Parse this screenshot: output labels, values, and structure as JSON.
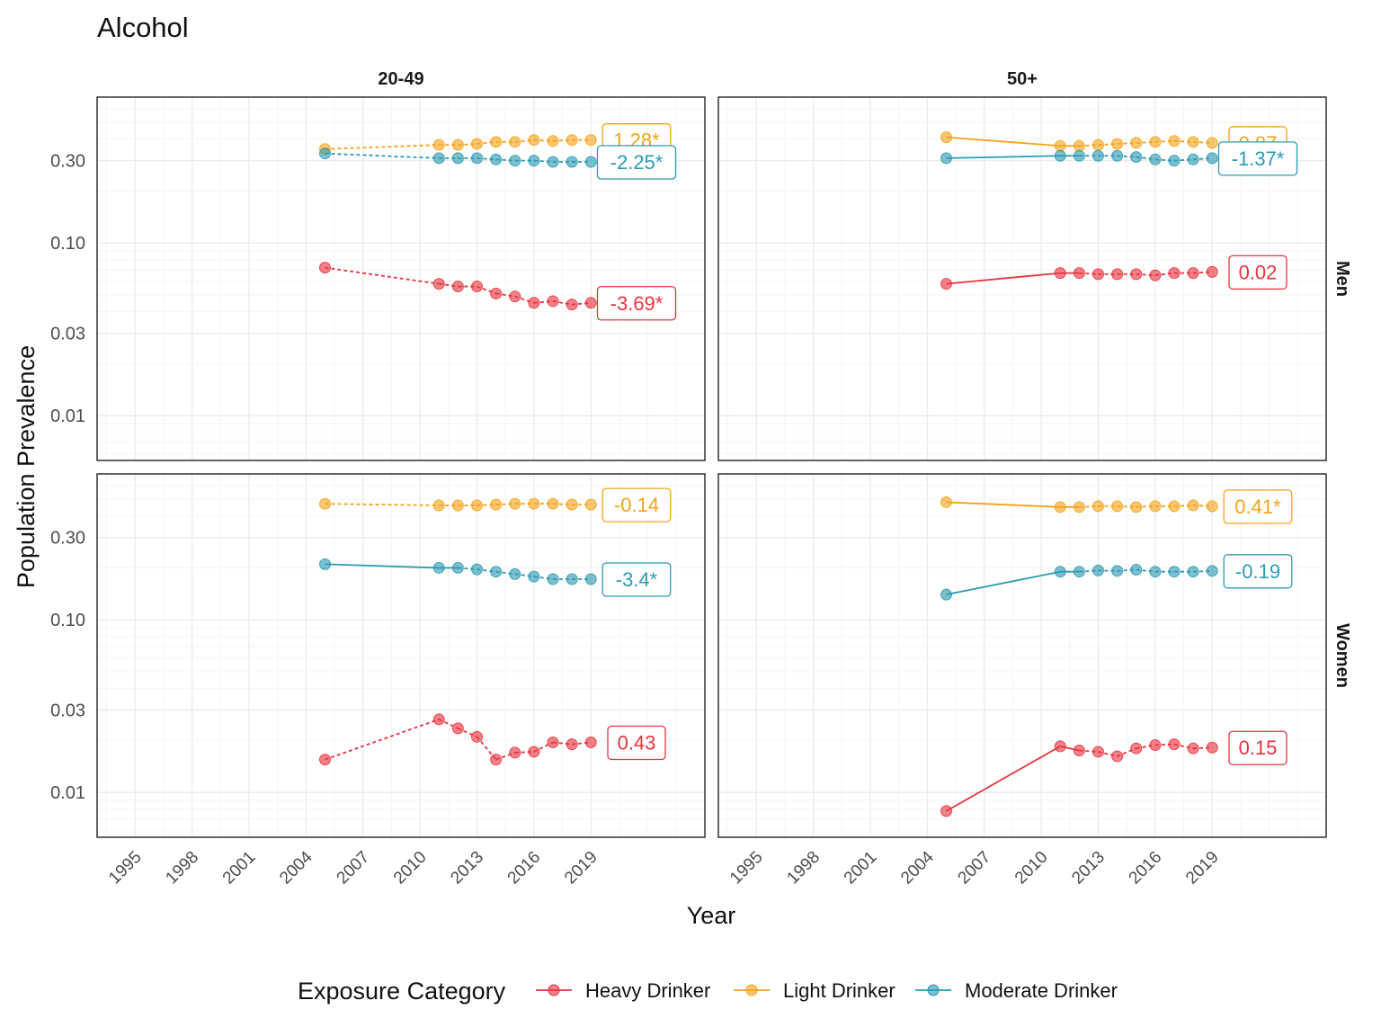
{
  "chart_data": {
    "type": "line",
    "title": "Alcohol",
    "xlabel": "Year",
    "ylabel": "Population Prevalence",
    "y_scale": "log10",
    "ylim": [
      0.0055,
      0.7
    ],
    "xlim": [
      1993,
      2025
    ],
    "x_ticks": [
      1995,
      1998,
      2001,
      2004,
      2007,
      2010,
      2013,
      2016,
      2019
    ],
    "y_ticks": [
      0.01,
      0.03,
      0.1,
      0.3
    ],
    "y_tick_labels": [
      "0.01",
      "0.03",
      "0.10",
      "0.30"
    ],
    "col_facets": [
      "20-49",
      "50+"
    ],
    "row_facets": [
      "Men",
      "Women"
    ],
    "grid": true,
    "legend": {
      "title": "Exposure Category",
      "position": "bottom",
      "entries": [
        "Heavy Drinker",
        "Light Drinker",
        "Moderate Drinker"
      ]
    },
    "colors": {
      "Heavy Drinker": "#E8343F",
      "Light Drinker": "#F5A31A",
      "Moderate Drinker": "#2C9AB3"
    },
    "x": [
      2005,
      2011,
      2012,
      2013,
      2014,
      2015,
      2016,
      2017,
      2018,
      2019
    ],
    "panels": [
      {
        "col": "20-49",
        "row": "Men",
        "series": [
          {
            "name": "Heavy Drinker",
            "x": [
              2005,
              2011,
              2012,
              2013,
              2014,
              2015,
              2016,
              2017,
              2018,
              2019
            ],
            "values": [
              0.072,
              0.058,
              0.056,
              0.056,
              0.051,
              0.049,
              0.045,
              0.046,
              0.044,
              0.045
            ],
            "solid_from": null,
            "annotation": "-3.69*"
          },
          {
            "name": "Light Drinker",
            "x": [
              2005,
              2011,
              2012,
              2013,
              2014,
              2015,
              2016,
              2017,
              2018,
              2019
            ],
            "values": [
              0.35,
              0.37,
              0.37,
              0.375,
              0.385,
              0.385,
              0.395,
              0.39,
              0.395,
              0.395
            ],
            "solid_from": null,
            "annotation": "1.28*"
          },
          {
            "name": "Moderate Drinker",
            "x": [
              2005,
              2011,
              2012,
              2013,
              2014,
              2015,
              2016,
              2017,
              2018,
              2019
            ],
            "values": [
              0.33,
              0.31,
              0.31,
              0.31,
              0.305,
              0.3,
              0.3,
              0.295,
              0.295,
              0.295
            ],
            "solid_from": null,
            "annotation": "-2.25*"
          }
        ]
      },
      {
        "col": "50+",
        "row": "Men",
        "series": [
          {
            "name": "Heavy Drinker",
            "x": [
              2005,
              2011,
              2012,
              2013,
              2014,
              2015,
              2016,
              2017,
              2018,
              2019
            ],
            "values": [
              0.058,
              0.067,
              0.067,
              0.066,
              0.066,
              0.066,
              0.065,
              0.067,
              0.067,
              0.068
            ],
            "solid_from": 2012,
            "annotation": "0.02"
          },
          {
            "name": "Light Drinker",
            "x": [
              2005,
              2011,
              2012,
              2013,
              2014,
              2015,
              2016,
              2017,
              2018,
              2019
            ],
            "values": [
              0.41,
              0.365,
              0.365,
              0.37,
              0.375,
              0.38,
              0.385,
              0.39,
              0.385,
              0.38
            ],
            "solid_from": 2012,
            "annotation": "0.87"
          },
          {
            "name": "Moderate Drinker",
            "x": [
              2005,
              2011,
              2012,
              2013,
              2014,
              2015,
              2016,
              2017,
              2018,
              2019
            ],
            "values": [
              0.31,
              0.32,
              0.32,
              0.32,
              0.32,
              0.315,
              0.305,
              0.3,
              0.305,
              0.31
            ],
            "solid_from": 2012,
            "annotation": "-1.37*"
          }
        ]
      },
      {
        "col": "20-49",
        "row": "Women",
        "series": [
          {
            "name": "Heavy Drinker",
            "x": [
              2005,
              2011,
              2012,
              2013,
              2014,
              2015,
              2016,
              2017,
              2018,
              2019
            ],
            "values": [
              0.0155,
              0.0265,
              0.0235,
              0.021,
              0.0155,
              0.017,
              0.0172,
              0.0195,
              0.019,
              0.0195
            ],
            "solid_from": null,
            "annotation": "0.43"
          },
          {
            "name": "Light Drinker",
            "x": [
              2005,
              2011,
              2012,
              2013,
              2014,
              2015,
              2016,
              2017,
              2018,
              2019
            ],
            "values": [
              0.47,
              0.46,
              0.46,
              0.46,
              0.465,
              0.47,
              0.47,
              0.47,
              0.465,
              0.465
            ],
            "solid_from": null,
            "annotation": "-0.14"
          },
          {
            "name": "Moderate Drinker",
            "x": [
              2005,
              2011,
              2012,
              2013,
              2014,
              2015,
              2016,
              2017,
              2018,
              2019
            ],
            "values": [
              0.21,
              0.2,
              0.2,
              0.196,
              0.19,
              0.184,
              0.178,
              0.172,
              0.172,
              0.172
            ],
            "solid_from": 2012,
            "annotation": "-3.4*"
          }
        ]
      },
      {
        "col": "50+",
        "row": "Women",
        "series": [
          {
            "name": "Heavy Drinker",
            "x": [
              2005,
              2011,
              2012,
              2013,
              2014,
              2015,
              2016,
              2017,
              2018,
              2019
            ],
            "values": [
              0.0078,
              0.0185,
              0.0175,
              0.0172,
              0.0162,
              0.018,
              0.0188,
              0.019,
              0.018,
              0.0182
            ],
            "solid_from": 2012,
            "annotation": "0.15"
          },
          {
            "name": "Light Drinker",
            "x": [
              2005,
              2011,
              2012,
              2013,
              2014,
              2015,
              2016,
              2017,
              2018,
              2019
            ],
            "values": [
              0.48,
              0.45,
              0.45,
              0.455,
              0.455,
              0.45,
              0.455,
              0.455,
              0.46,
              0.455
            ],
            "solid_from": 2012,
            "annotation": "0.41*"
          },
          {
            "name": "Moderate Drinker",
            "x": [
              2005,
              2011,
              2012,
              2013,
              2014,
              2015,
              2016,
              2017,
              2018,
              2019
            ],
            "values": [
              0.14,
              0.19,
              0.19,
              0.193,
              0.192,
              0.195,
              0.19,
              0.19,
              0.19,
              0.192
            ],
            "solid_from": 2012,
            "annotation": "-0.19"
          }
        ]
      }
    ]
  }
}
